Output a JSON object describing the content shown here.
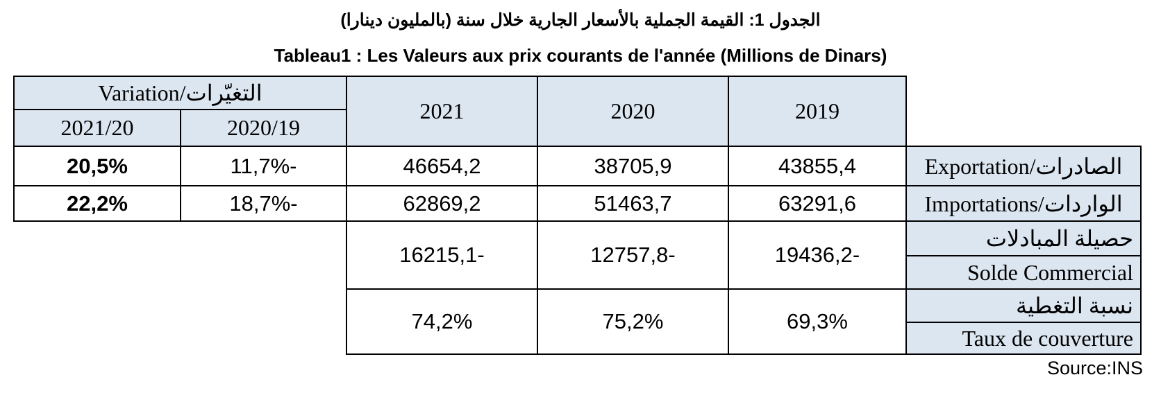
{
  "title_ar": "الجدول 1: القيمة الجملية بالأسعار الجارية خلال سنة (بالمليون دينارا)",
  "title_fr": "Tableau1 : Les Valeurs aux prix courants de l'année  (Millions de Dinars)",
  "table": {
    "header": {
      "variation": "Variation/التغيّرات",
      "variation_cols": [
        "2021/20",
        "2020/19"
      ],
      "years": [
        "2021",
        "2020",
        "2019"
      ]
    },
    "rows": [
      {
        "label": "Exportation/الصادرات",
        "values": [
          "20,5%",
          "11,7%-",
          "46654,2",
          "38705,9",
          "43855,4"
        ]
      },
      {
        "label": "Importations/الواردات",
        "values": [
          "22,2%",
          "18,7%-",
          "62869,2",
          "51463,7",
          "63291,6"
        ]
      },
      {
        "labels": [
          "حصيلة المبادلات",
          "Solde Commercial"
        ],
        "values": [
          "16215,1-",
          "12757,8-",
          "19436,2-"
        ]
      },
      {
        "labels": [
          "نسبة التغطية",
          "Taux de couverture"
        ],
        "values": [
          "74,2%",
          "75,2%",
          "69,3%"
        ]
      }
    ]
  },
  "source": "Source:INS"
}
